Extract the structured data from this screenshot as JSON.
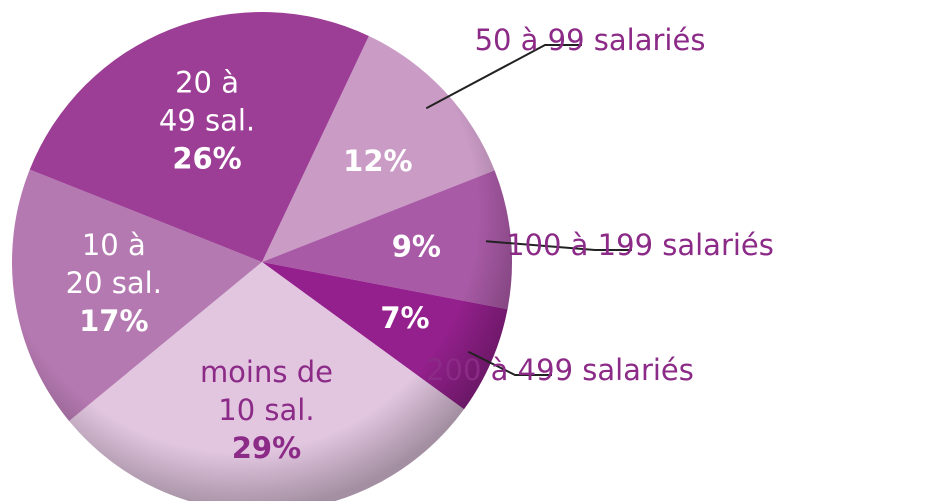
{
  "chart_data": {
    "type": "pie",
    "categories": [
      [
        "50 à 99 salariés"
      ],
      [
        "100 à 199 salariés"
      ],
      [
        "200 à 499 salariés"
      ],
      [
        "moins de",
        "10 sal."
      ],
      [
        "10 à",
        "20 sal."
      ],
      [
        "20 à",
        "49 sal."
      ]
    ],
    "values": [
      12,
      9,
      7,
      29,
      17,
      26
    ],
    "value_labels": [
      "12%",
      "9%",
      "7%",
      "29%",
      "17%",
      "26%"
    ],
    "colors": [
      "#c99bc5",
      "#a95aa6",
      "#94208d",
      "#e2c6e0",
      "#b579b1",
      "#9d3e96"
    ]
  }
}
